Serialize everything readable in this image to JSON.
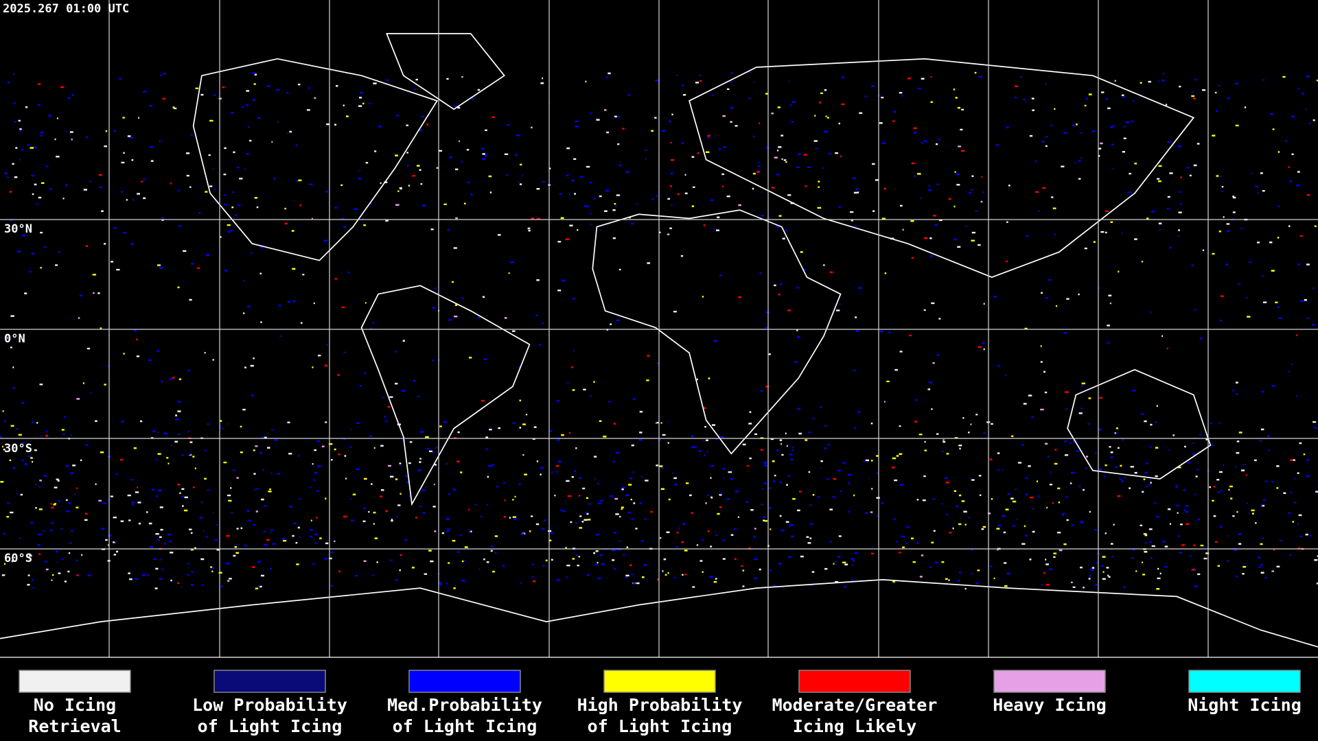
{
  "header": {
    "timestamp": "2025.267 01:00 UTC"
  },
  "grid": {
    "lat_labels": [
      "30°N",
      "0°N",
      "30°S",
      "60°S"
    ]
  },
  "legend": {
    "items": [
      {
        "lines": [
          "No Icing",
          "Retrieval"
        ],
        "color": "#f0f0f0"
      },
      {
        "lines": [
          "Low Probability",
          "of Light Icing"
        ],
        "color": "#0a0a78"
      },
      {
        "lines": [
          "Med.Probability",
          "of Light Icing"
        ],
        "color": "#0000ff"
      },
      {
        "lines": [
          "High Probability",
          "of Light Icing"
        ],
        "color": "#ffff00"
      },
      {
        "lines": [
          "Moderate/Greater",
          "Icing Likely"
        ],
        "color": "#ff0000"
      },
      {
        "lines": [
          "Heavy Icing"
        ],
        "color": "#e6a0e6"
      },
      {
        "lines": [
          "Night Icing"
        ],
        "color": "#00ffff"
      }
    ]
  }
}
